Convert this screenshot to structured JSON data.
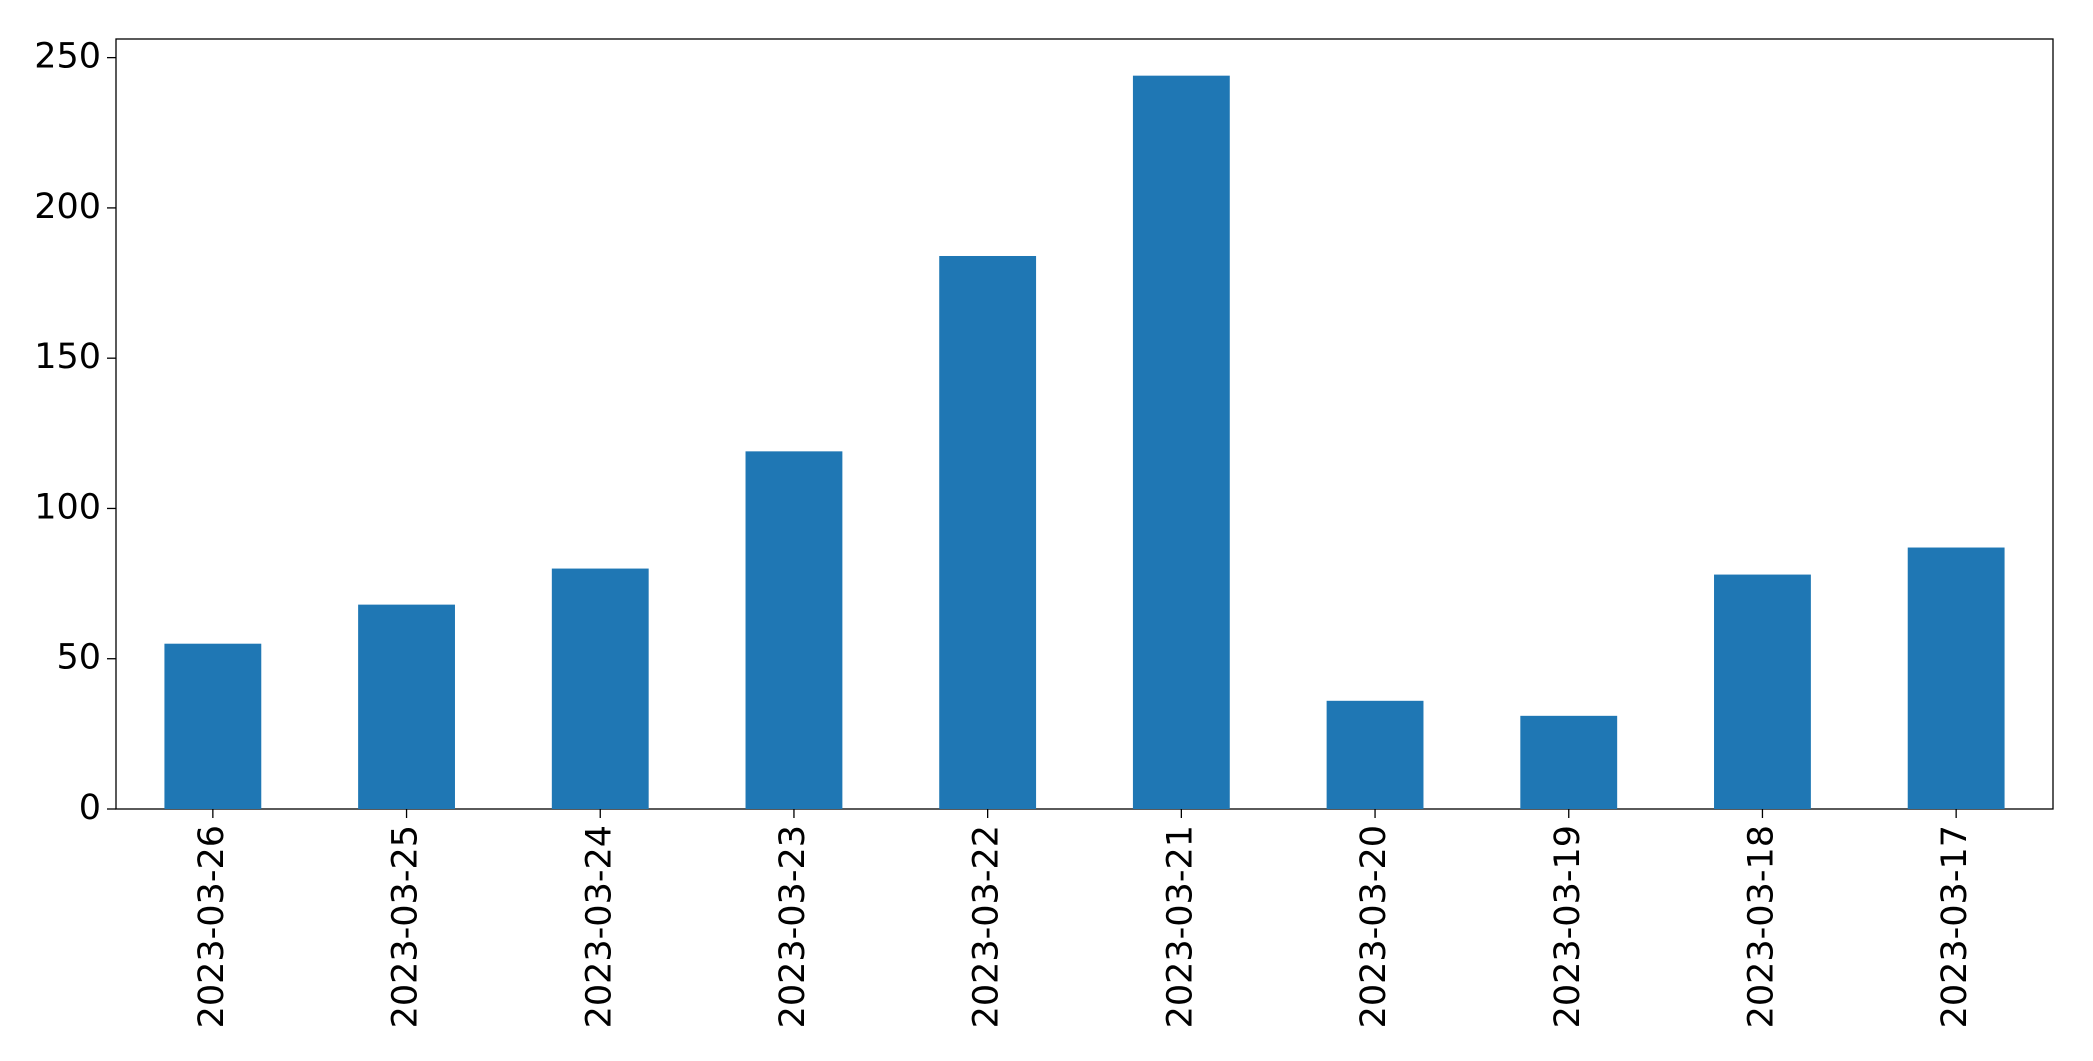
{
  "chart_data": {
    "type": "bar",
    "categories": [
      "2023-03-26",
      "2023-03-25",
      "2023-03-24",
      "2023-03-23",
      "2023-03-22",
      "2023-03-21",
      "2023-03-20",
      "2023-03-19",
      "2023-03-18",
      "2023-03-17"
    ],
    "values": [
      55,
      68,
      80,
      119,
      184,
      244,
      36,
      31,
      78,
      87
    ],
    "color": "#1f77b4",
    "ylim": [
      0,
      256.2
    ],
    "yticks": [
      0,
      50,
      100,
      150,
      200,
      250
    ],
    "grid": false
  }
}
